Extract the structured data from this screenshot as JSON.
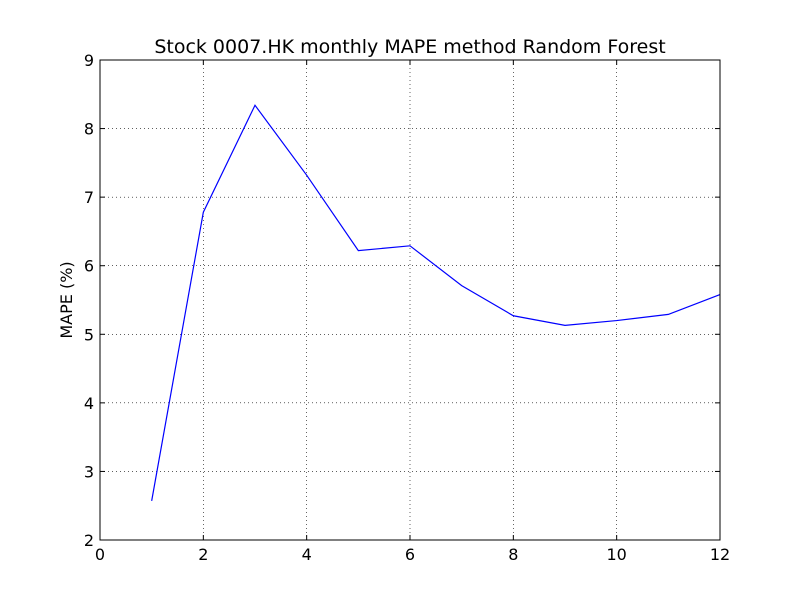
{
  "chart_data": {
    "type": "line",
    "title": "Stock 0007.HK monthly MAPE method Random Forest",
    "xlabel": "",
    "ylabel": "MAPE (%)",
    "xlim": [
      0,
      12
    ],
    "ylim": [
      2,
      9
    ],
    "xticks": [
      0,
      2,
      4,
      6,
      8,
      10,
      12
    ],
    "yticks": [
      2,
      3,
      4,
      5,
      6,
      7,
      8,
      9
    ],
    "grid": true,
    "series": [
      {
        "color": "#0000ff",
        "x": [
          1,
          2,
          3,
          4,
          5,
          6,
          7,
          8,
          9,
          10,
          11,
          12
        ],
        "y": [
          2.57,
          6.78,
          8.34,
          7.32,
          6.22,
          6.29,
          5.71,
          5.27,
          5.13,
          5.2,
          5.29,
          5.58
        ]
      }
    ]
  }
}
